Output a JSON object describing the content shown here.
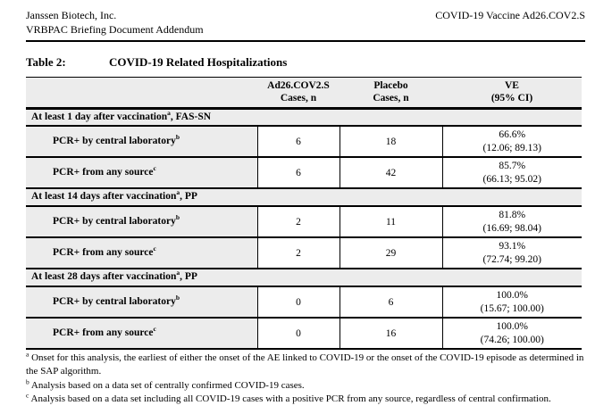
{
  "page_header": {
    "left_line1": "Janssen Biotech, Inc.",
    "left_line2": "VRBPAC Briefing Document Addendum",
    "right": "COVID-19 Vaccine Ad26.COV2.S"
  },
  "table_title": {
    "number": "Table 2:",
    "text": "COVID-19 Related Hospitalizations"
  },
  "table": {
    "columns": [
      {
        "line1": "",
        "line2": ""
      },
      {
        "line1": "Ad26.COV2.S",
        "line2": "Cases, n"
      },
      {
        "line1": "Placebo",
        "line2": "Cases, n"
      },
      {
        "line1": "VE",
        "line2": "(95% CI)"
      }
    ],
    "sections": [
      {
        "header": {
          "text": "At least 1 day after vaccination",
          "sup": "a",
          "suffix": ", FAS-SN"
        },
        "rows": [
          {
            "label": "PCR+ by central laboratory",
            "sup": "b",
            "vaccine": "6",
            "placebo": "18",
            "ve": "66.6%",
            "ci": "(12.06; 89.13)"
          },
          {
            "label": "PCR+ from any source",
            "sup": "c",
            "vaccine": "6",
            "placebo": "42",
            "ve": "85.7%",
            "ci": "(66.13; 95.02)"
          }
        ]
      },
      {
        "header": {
          "text": "At least 14 days after vaccination",
          "sup": "a",
          "suffix": ", PP"
        },
        "rows": [
          {
            "label": "PCR+ by central laboratory",
            "sup": "b",
            "vaccine": "2",
            "placebo": "11",
            "ve": "81.8%",
            "ci": "(16.69; 98.04)"
          },
          {
            "label": "PCR+ from any source",
            "sup": "c",
            "vaccine": "2",
            "placebo": "29",
            "ve": "93.1%",
            "ci": "(72.74; 99.20)"
          }
        ]
      },
      {
        "header": {
          "text": "At least 28 days after vaccination",
          "sup": "a",
          "suffix": ", PP"
        },
        "rows": [
          {
            "label": "PCR+ by central laboratory",
            "sup": "b",
            "vaccine": "0",
            "placebo": "6",
            "ve": "100.0%",
            "ci": "(15.67; 100.00)"
          },
          {
            "label": "PCR+ from any source",
            "sup": "c",
            "vaccine": "0",
            "placebo": "16",
            "ve": "100.0%",
            "ci": "(74.26; 100.00)"
          }
        ]
      }
    ]
  },
  "footnotes": [
    {
      "sup": "a",
      "text": "Onset for this analysis, the earliest of either the onset of the AE linked to COVID-19 or the onset of the COVID-19 episode as determined in the SAP algorithm."
    },
    {
      "sup": "b",
      "text": "Analysis based on a data set of centrally confirmed COVID-19 cases."
    },
    {
      "sup": "c",
      "text": "Analysis based on a data set including all COVID-19 cases with a positive PCR from any source, regardless of central confirmation."
    }
  ],
  "colors": {
    "row_shade": "#ececec",
    "border": "#000000",
    "background": "#ffffff"
  }
}
